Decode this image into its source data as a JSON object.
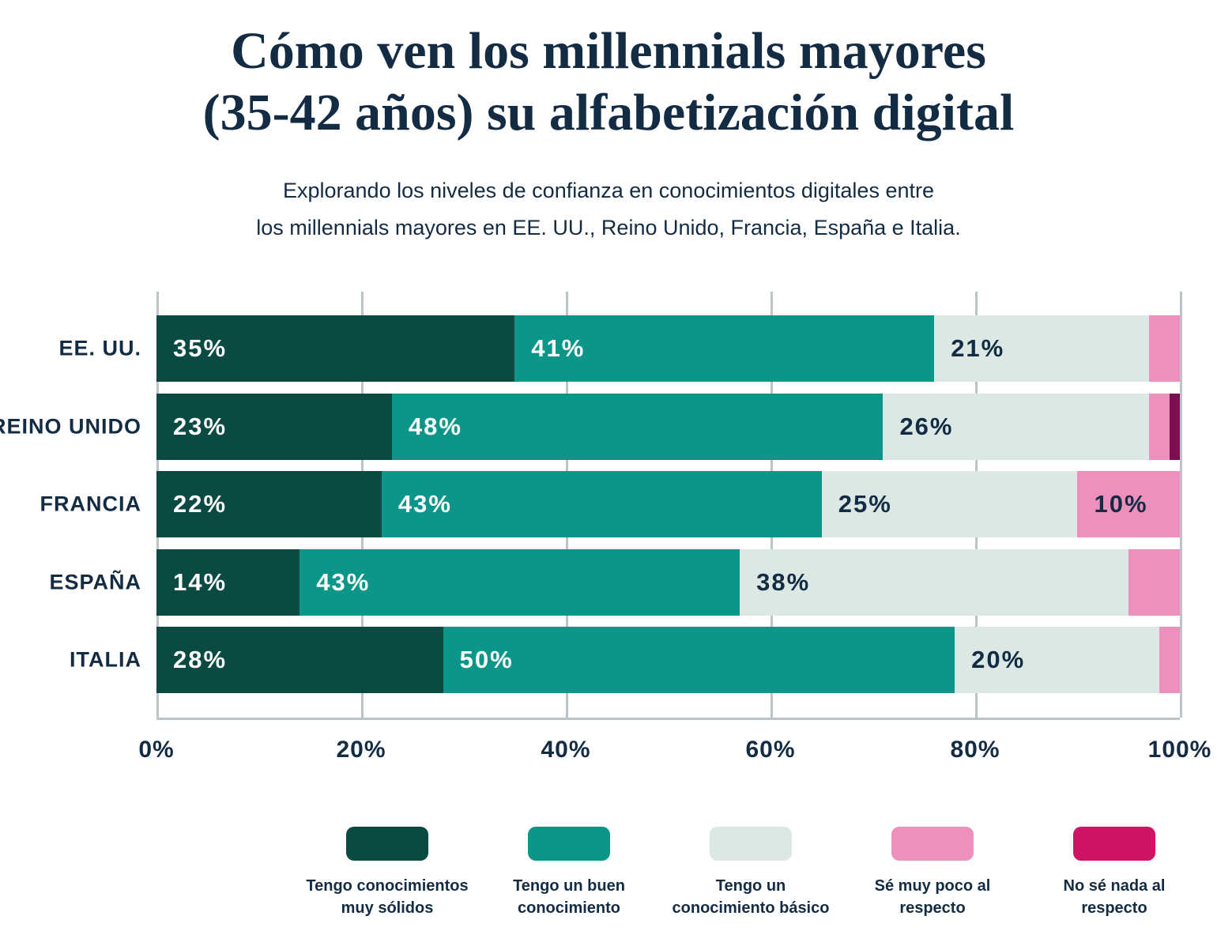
{
  "header": {
    "title_lines": [
      "Cómo ven los millennials mayores",
      "(35-42 años) su alfabetización digital"
    ],
    "subtitle_lines": [
      "Explorando los niveles de confianza en conocimientos digitales entre",
      "los millennials mayores en EE. UU., Reino Unido, Francia, España e Italia."
    ]
  },
  "chart_data": {
    "type": "bar",
    "orientation": "horizontal",
    "stacked": true,
    "title": "Cómo ven los millennials mayores (35-42 años) su alfabetización digital",
    "categories": [
      "EE. UU.",
      "REINO UNIDO",
      "FRANCIA",
      "ESPAÑA",
      "ITALIA"
    ],
    "series": [
      {
        "name": "Tengo conocimientos muy sólidos",
        "legend_lines": [
          "Tengo conocimientos",
          "muy sólidos"
        ],
        "color": "#0b4a42",
        "label_color": "#ffffff",
        "values": [
          35,
          23,
          22,
          14,
          28
        ]
      },
      {
        "name": "Tengo un buen conocimiento",
        "legend_lines": [
          "Tengo un buen",
          "conocimiento"
        ],
        "color": "#0b9689",
        "label_color": "#ffffff",
        "values": [
          41,
          48,
          43,
          43,
          50
        ]
      },
      {
        "name": "Tengo un conocimiento básico",
        "legend_lines": [
          "Tengo un",
          "conocimiento básico"
        ],
        "color": "#dbe8e4",
        "label_color": "#132c43",
        "values": [
          21,
          26,
          25,
          38,
          20
        ]
      },
      {
        "name": "Sé muy poco al respecto",
        "legend_lines": [
          "Sé muy poco al",
          "respecto"
        ],
        "color": "#ee90bd",
        "label_color": "#132c43",
        "values": [
          3,
          2,
          10,
          5,
          2
        ]
      },
      {
        "name": "No sé nada al respecto",
        "legend_lines": [
          "No sé nada al",
          "respecto"
        ],
        "color": "#cf1365",
        "bar_color": "#7a1050",
        "label_color": "#ffffff",
        "values": [
          0,
          1,
          0,
          0,
          0
        ]
      }
    ],
    "label_min_pct": 10,
    "value_label_suffix": "%",
    "x_ticks": [
      "0%",
      "20%",
      "40%",
      "60%",
      "80%",
      "100%"
    ],
    "xlim": [
      0,
      100
    ],
    "grid": true,
    "grid_color": "#b9c5c7",
    "text_color": "#132c43",
    "background_color": "#ffffff",
    "legend_position": "bottom"
  }
}
